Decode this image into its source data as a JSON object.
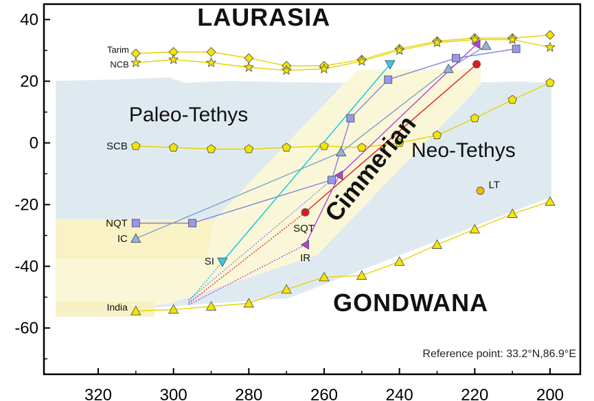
{
  "chart_data": {
    "type": "line",
    "title": "",
    "xlabel": "",
    "ylabel": "",
    "xlim": [
      320,
      200
    ],
    "ylim": [
      -75,
      45
    ],
    "x_ticks": [
      320,
      300,
      280,
      260,
      240,
      220,
      200
    ],
    "x_tick_labels": [
      "320",
      "300",
      "280",
      "260",
      "240",
      "220",
      "200"
    ],
    "y_ticks": [
      40,
      20,
      0,
      -20,
      -40,
      -60
    ],
    "y_tick_labels": [
      "40",
      "20",
      "0",
      "-20",
      "-40",
      "-60"
    ],
    "grid": false,
    "legend": "none",
    "annotation_reference": "Reference point: 33.2°N,86.9°E",
    "regions": [
      {
        "name": "LAURASIA",
        "text": "LAURASIA",
        "x": 276,
        "y": 38,
        "style": "continent"
      },
      {
        "name": "GONDWANA",
        "text": "GONDWANA",
        "x": 237,
        "y": -54.5,
        "style": "continent"
      },
      {
        "name": "Paleo-Tethys",
        "text": "Paleo-Tethys",
        "x": 296,
        "y": 7,
        "style": "ocean"
      },
      {
        "name": "Neo-Tethys",
        "text": "Neo-Tethys",
        "x": 223,
        "y": -4.5,
        "style": "ocean"
      },
      {
        "name": "Cimmerian",
        "text": "Cimmerian",
        "x": 246,
        "y": -10,
        "style": "rotated"
      }
    ],
    "series": [
      {
        "name": "Tarim",
        "color": "#f5e400",
        "stroke": "#e4d400",
        "marker": "diamond",
        "label_side": "left",
        "style": "solid",
        "x": [
          310,
          300,
          290,
          280,
          270,
          260,
          250,
          240,
          230,
          220,
          210,
          200
        ],
        "y": [
          29,
          29.5,
          29.5,
          27.5,
          25,
          25,
          27,
          30.5,
          33,
          34,
          34,
          35
        ]
      },
      {
        "name": "NCB",
        "color": "#f5e400",
        "stroke": "#e4d400",
        "marker": "star",
        "label_side": "left",
        "style": "solid",
        "x": [
          310,
          300,
          290,
          280,
          270,
          260,
          250,
          240,
          230,
          220,
          210,
          200
        ],
        "y": [
          26,
          27,
          26,
          24.5,
          23.5,
          24,
          26.5,
          30,
          32.5,
          33.5,
          33.5,
          31
        ]
      },
      {
        "name": "SCB",
        "color": "#f5e400",
        "stroke": "#e4d400",
        "marker": "pentagon",
        "label_side": "left",
        "style": "solid",
        "x": [
          310,
          300,
          290,
          280,
          270,
          260,
          250,
          240,
          230,
          220,
          210,
          200
        ],
        "y": [
          -1,
          -1.5,
          -2,
          -2,
          -1.5,
          -1,
          -1.5,
          0,
          2.5,
          8,
          14,
          19.5
        ]
      },
      {
        "name": "India",
        "color": "#f5e400",
        "stroke": "#e4d400",
        "marker": "triangle-up",
        "label_side": "left",
        "style": "solid",
        "x": [
          310,
          300,
          290,
          280,
          270,
          260,
          250,
          240,
          230,
          220,
          210,
          200
        ],
        "y": [
          -54.5,
          -54,
          -53,
          -52,
          -47.5,
          -43.5,
          -43,
          -38.5,
          -33,
          -28,
          -23,
          -19
        ]
      },
      {
        "name": "NQT",
        "color": "#9797f2",
        "stroke": "#7f80e0",
        "marker": "square",
        "label_side": "left",
        "style": "solid",
        "x": [
          310,
          295,
          258,
          253,
          243,
          225,
          209
        ],
        "y": [
          -26,
          -26,
          -12,
          8,
          20.5,
          27.5,
          30.5
        ]
      },
      {
        "name": "IC",
        "color": "#8fb3e0",
        "stroke": "#7f9fd0",
        "marker": "triangle-up",
        "label_side": "left",
        "style": "solid",
        "x": [
          310,
          255.5,
          227,
          217
        ],
        "y": [
          -31,
          -3,
          24,
          31.5
        ]
      },
      {
        "name": "SI",
        "color": "#38c8e8",
        "stroke": "#00c8e0",
        "marker": "triangle-down",
        "label_side": "left",
        "style": "solid",
        "x": [
          287,
          242.5
        ],
        "y": [
          -38.5,
          25.5
        ]
      },
      {
        "name": "SQT",
        "color": "#e8161f",
        "stroke": "#e8161f",
        "marker": "circle",
        "label_side": "below-left",
        "style": "solid",
        "x": [
          265,
          219.5
        ],
        "y": [
          -22.5,
          25.5
        ]
      },
      {
        "name": "IR",
        "color": "#b040d8",
        "stroke": "#b040d8",
        "marker": "triangle-left",
        "label_side": "below",
        "style": "solid",
        "x": [
          265,
          256,
          219.5
        ],
        "y": [
          -33,
          -10.5,
          32
        ]
      },
      {
        "name": "LT",
        "color": "#f5b800",
        "stroke": "#d59a00",
        "marker": "circle",
        "label_side": "right",
        "style": "point",
        "x": [
          218.5
        ],
        "y": [
          -15.5
        ]
      }
    ],
    "dotted_links": [
      {
        "color": "#00c8e0",
        "x": [
          296,
          287
        ],
        "y": [
          -51.5,
          -38.5
        ]
      },
      {
        "color": "#e8161f",
        "x": [
          296,
          265
        ],
        "y": [
          -52,
          -22.5
        ]
      },
      {
        "color": "#b040d8",
        "x": [
          296,
          265
        ],
        "y": [
          -52.5,
          -33
        ]
      },
      {
        "color": "#7f80e0",
        "x": [
          296,
          258
        ],
        "y": [
          -51,
          -12
        ]
      }
    ]
  }
}
